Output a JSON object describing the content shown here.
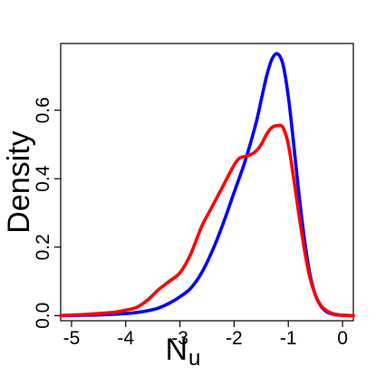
{
  "chart_data": {
    "type": "line",
    "title": "",
    "xlabel_main": "N",
    "xlabel_sub": "u",
    "ylabel": "Density",
    "xlim": [
      -5.2,
      0.2
    ],
    "ylim": [
      -0.015,
      0.795
    ],
    "x_ticks": [
      -5,
      -4,
      -3,
      -2,
      -1,
      0
    ],
    "x_tick_labels": [
      "-5",
      "-4",
      "-3",
      "-2",
      "-1",
      "0"
    ],
    "y_ticks": [
      0.0,
      0.2,
      0.4,
      0.6
    ],
    "y_tick_labels": [
      "0.0",
      "0.2",
      "0.4",
      "0.6"
    ],
    "grid": false,
    "series": [
      {
        "color": "#0000ff",
        "x": [
          -5.2,
          -4.8,
          -4.5,
          -4.2,
          -4.0,
          -3.8,
          -3.6,
          -3.4,
          -3.2,
          -3.0,
          -2.8,
          -2.6,
          -2.4,
          -2.2,
          -2.0,
          -1.8,
          -1.6,
          -1.5,
          -1.4,
          -1.3,
          -1.2,
          -1.1,
          -1.0,
          -0.9,
          -0.8,
          -0.7,
          -0.6,
          -0.5,
          -0.4,
          -0.3,
          -0.2,
          -0.1,
          0.0,
          0.2
        ],
        "y": [
          0.0,
          0.001,
          0.002,
          0.004,
          0.006,
          0.009,
          0.014,
          0.022,
          0.036,
          0.055,
          0.08,
          0.125,
          0.19,
          0.27,
          0.36,
          0.45,
          0.56,
          0.63,
          0.7,
          0.75,
          0.765,
          0.735,
          0.64,
          0.5,
          0.35,
          0.22,
          0.12,
          0.06,
          0.028,
          0.012,
          0.005,
          0.002,
          0.001,
          0.0
        ]
      },
      {
        "color": "#ff0000",
        "x": [
          -5.2,
          -4.8,
          -4.5,
          -4.2,
          -4.0,
          -3.8,
          -3.6,
          -3.4,
          -3.2,
          -3.0,
          -2.8,
          -2.6,
          -2.4,
          -2.2,
          -2.0,
          -1.9,
          -1.8,
          -1.7,
          -1.6,
          -1.5,
          -1.4,
          -1.3,
          -1.2,
          -1.1,
          -1.0,
          -0.9,
          -0.8,
          -0.7,
          -0.6,
          -0.5,
          -0.4,
          -0.3,
          -0.2,
          -0.1,
          0.0,
          0.2
        ],
        "y": [
          0.0,
          0.003,
          0.006,
          0.01,
          0.016,
          0.024,
          0.045,
          0.075,
          0.1,
          0.125,
          0.18,
          0.26,
          0.32,
          0.38,
          0.44,
          0.46,
          0.465,
          0.47,
          0.48,
          0.5,
          0.53,
          0.55,
          0.555,
          0.55,
          0.5,
          0.4,
          0.29,
          0.19,
          0.11,
          0.06,
          0.03,
          0.015,
          0.007,
          0.003,
          0.001,
          0.0
        ]
      }
    ]
  }
}
